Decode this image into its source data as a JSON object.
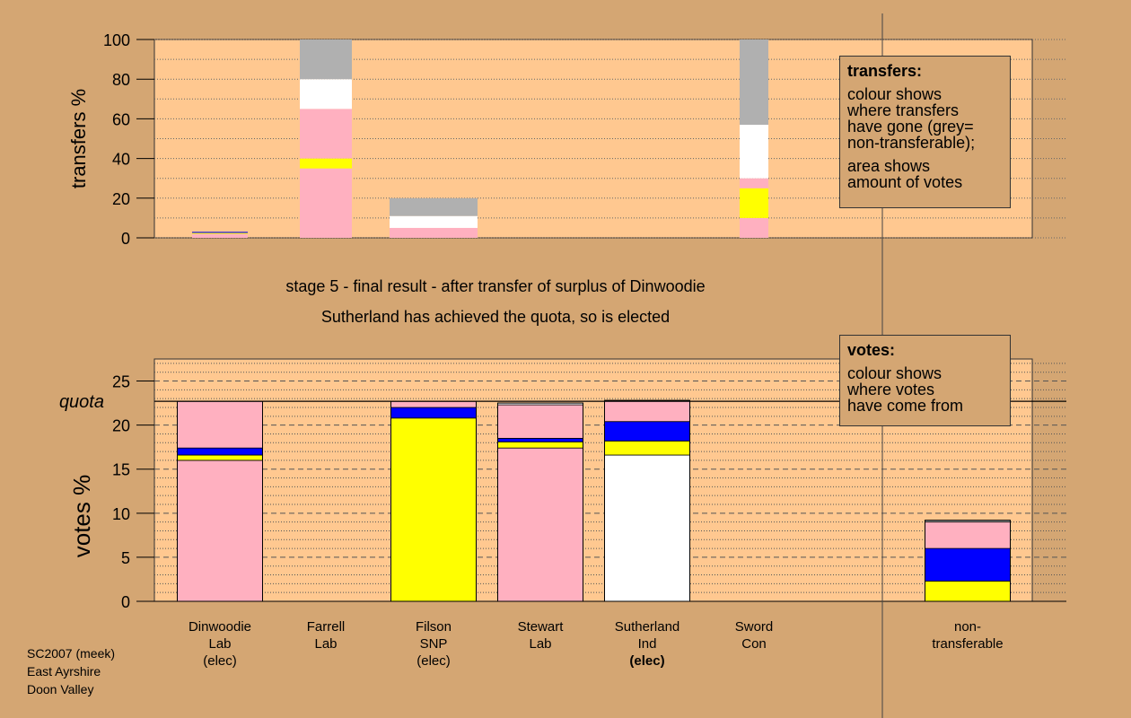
{
  "captions": {
    "line1": "stage 5 - final result - after transfer of surplus of Dinwoodie",
    "line2": "Sutherland has achieved the quota, so is elected"
  },
  "legend_transfers": {
    "title": "transfers:",
    "lines1": [
      "colour shows",
      "where transfers",
      "have gone (grey=",
      "non-transferable);"
    ],
    "lines2": [
      "area shows",
      "amount of votes"
    ]
  },
  "legend_votes": {
    "title": "votes:",
    "lines": [
      "colour shows",
      "where votes",
      "have come from"
    ]
  },
  "footer": [
    "SC2007 (meek)",
    "East Ayrshire",
    "Doon Valley"
  ],
  "colors": {
    "lab": "#ffb0c0",
    "snp": "#ffff00",
    "con": "#0000ff",
    "ind": "#ffffff",
    "nontransferable": "#b0b0b0",
    "plot_bg": "#ffc890",
    "page_bg": "#d4a673"
  },
  "chart_data": [
    {
      "type": "bar",
      "stacked": true,
      "ylabel": "transfers %",
      "ylim": [
        0,
        100
      ],
      "yticks": [
        0,
        20,
        40,
        60,
        80,
        100
      ],
      "grid": true,
      "categories": [
        "Dinwoodie",
        "Farrell",
        "Filson",
        "Stewart",
        "Sutherland",
        "Sword"
      ],
      "bars": [
        {
          "category": "Dinwoodie",
          "segments": [
            {
              "color": "lab",
              "value": 2
            },
            {
              "color": "snp",
              "value": 0.5
            },
            {
              "color": "con",
              "value": 0.5
            }
          ]
        },
        {
          "category": "Farrell",
          "segments": [
            {
              "color": "lab",
              "value": 35
            },
            {
              "color": "snp",
              "value": 5
            },
            {
              "color": "lab",
              "value": 25
            },
            {
              "color": "ind",
              "value": 15
            },
            {
              "color": "nontransferable",
              "value": 20
            }
          ]
        },
        {
          "category": "Filson",
          "segments": [
            {
              "color": "lab",
              "value": 5
            },
            {
              "color": "ind",
              "value": 6
            },
            {
              "color": "nontransferable",
              "value": 9
            }
          ]
        },
        {
          "category": "Stewart",
          "segments": []
        },
        {
          "category": "Sutherland",
          "segments": []
        },
        {
          "category": "Sword",
          "segments": [
            {
              "color": "lab",
              "value": 10
            },
            {
              "color": "snp",
              "value": 15
            },
            {
              "color": "lab",
              "value": 5
            },
            {
              "color": "ind",
              "value": 27
            },
            {
              "color": "nontransferable",
              "value": 43
            }
          ]
        }
      ]
    },
    {
      "type": "bar",
      "stacked": true,
      "ylabel": "votes %",
      "ylim": [
        0,
        27.5
      ],
      "yticks": [
        0,
        5,
        10,
        15,
        20,
        25
      ],
      "quota": 22.7,
      "quota_label": "quota",
      "grid": true,
      "categories": [
        {
          "lines": [
            "Dinwoodie",
            "Lab",
            "(elec)"
          ],
          "bold_last": false
        },
        {
          "lines": [
            "Farrell",
            "Lab"
          ],
          "bold_last": false
        },
        {
          "lines": [
            "Filson",
            "SNP",
            "(elec)"
          ],
          "bold_last": false
        },
        {
          "lines": [
            "Stewart",
            "Lab"
          ],
          "bold_last": false
        },
        {
          "lines": [
            "Sutherland",
            "Ind",
            "(elec)"
          ],
          "bold_last": true
        },
        {
          "lines": [
            "Sword",
            "Con"
          ],
          "bold_last": false
        },
        {
          "lines": [
            "non-",
            "transferable"
          ],
          "bold_last": false
        }
      ],
      "bars": [
        {
          "segments": [
            {
              "color": "lab",
              "value": 16.0
            },
            {
              "color": "snp",
              "value": 0.6
            },
            {
              "color": "con",
              "value": 0.8
            },
            {
              "color": "lab",
              "value": 5.3
            }
          ]
        },
        {
          "segments": []
        },
        {
          "segments": [
            {
              "color": "snp",
              "value": 20.8
            },
            {
              "color": "con",
              "value": 1.2
            },
            {
              "color": "lab",
              "value": 0.7
            }
          ]
        },
        {
          "segments": [
            {
              "color": "lab",
              "value": 17.4
            },
            {
              "color": "snp",
              "value": 0.7
            },
            {
              "color": "con",
              "value": 0.4
            },
            {
              "color": "lab",
              "value": 3.8
            },
            {
              "color": "ind",
              "value": 0.2
            }
          ]
        },
        {
          "segments": [
            {
              "color": "ind",
              "value": 16.6
            },
            {
              "color": "snp",
              "value": 1.6
            },
            {
              "color": "con",
              "value": 2.2
            },
            {
              "color": "lab",
              "value": 2.4
            }
          ]
        },
        {
          "segments": []
        },
        {
          "segments": [
            {
              "color": "snp",
              "value": 2.3
            },
            {
              "color": "con",
              "value": 3.7
            },
            {
              "color": "lab",
              "value": 3.0
            },
            {
              "color": "nontransferable",
              "value": 0.2
            }
          ]
        }
      ]
    }
  ]
}
